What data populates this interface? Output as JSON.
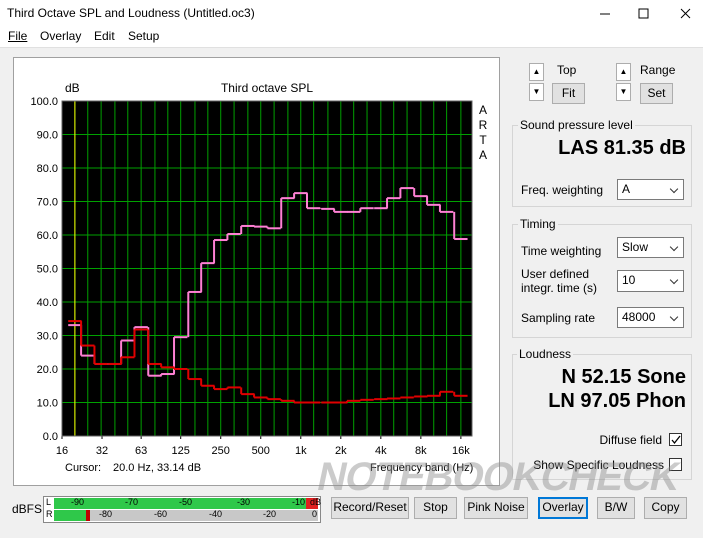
{
  "window": {
    "title": "Third Octave SPL and Loudness (Untitled.oc3)"
  },
  "menu": [
    "File",
    "Overlay",
    "Edit",
    "Setup"
  ],
  "chart_data": {
    "type": "line",
    "step": true,
    "title": "Third octave SPL",
    "y_unit": "dB",
    "side_label": "ARTA",
    "xlabel": "Frequency band (Hz)",
    "xscale": "log",
    "x": [
      20,
      25,
      31.5,
      40,
      50,
      63,
      80,
      100,
      125,
      160,
      200,
      250,
      315,
      400,
      500,
      630,
      800,
      1000,
      1250,
      1600,
      2000,
      2500,
      3150,
      4000,
      5000,
      6300,
      8000,
      10000,
      12500,
      16000
    ],
    "series": [
      {
        "color": "#ff80d4",
        "values": [
          33.1,
          24,
          21.5,
          21.5,
          28.5,
          32.5,
          18,
          18.5,
          29.5,
          43,
          51.6,
          58.5,
          60.3,
          62.7,
          62.5,
          62,
          71,
          72.5,
          68,
          67.8,
          66.9,
          66.9,
          68,
          68,
          71,
          74,
          71.6,
          69,
          66.9,
          58.8
        ]
      },
      {
        "color": "#e00000",
        "values": [
          34.3,
          27,
          21.5,
          21.5,
          23.5,
          31.8,
          21.5,
          20.5,
          20,
          17,
          15,
          14,
          14.5,
          12.5,
          11.5,
          11,
          10.5,
          10,
          10,
          10,
          10,
          10.5,
          10.8,
          11,
          11.2,
          11.5,
          11.8,
          12,
          13.2,
          12
        ]
      }
    ],
    "xlim": [
      16,
      19400
    ],
    "xticks": [
      16,
      32,
      63,
      125,
      250,
      500,
      {
        "value": 1000,
        "label": "1k"
      },
      {
        "value": 2000,
        "label": "2k"
      },
      {
        "value": 4000,
        "label": "4k"
      },
      {
        "value": 8000,
        "label": "8k"
      },
      {
        "value": 16000,
        "label": "16k"
      }
    ],
    "ylim": [
      0,
      100
    ],
    "yticks": [
      {
        "value": 0,
        "label": "0.0"
      },
      {
        "value": 10,
        "label": "10.0"
      },
      {
        "value": 20,
        "label": "20.0"
      },
      {
        "value": 30,
        "label": "30.0"
      },
      {
        "value": 40,
        "label": "40.0"
      },
      {
        "value": 50,
        "label": "50.0"
      },
      {
        "value": 60,
        "label": "60.0"
      },
      {
        "value": 70,
        "label": "70.0"
      },
      {
        "value": 80,
        "label": "80.0"
      },
      {
        "value": 90,
        "label": "90.0"
      },
      {
        "value": 100,
        "label": "100.0"
      }
    ],
    "grid": true,
    "background": "#000000",
    "grid_color": "#00a000",
    "cursor": {
      "label": "Cursor:",
      "x": 20,
      "color": "#ffff00",
      "readout": "20.0 Hz, 33.14 dB"
    }
  },
  "controls": {
    "top": "Top",
    "fit": "Fit",
    "range": "Range",
    "set": "Set"
  },
  "spl": {
    "title": "Sound pressure level",
    "reading": "LAS 81.35 dB",
    "weighting_label": "Freq. weighting",
    "weighting": "A"
  },
  "timing": {
    "title": "Timing",
    "time_weighting_label": "Time weighting",
    "time_weighting": "Slow",
    "integr_label": [
      "User defined",
      "integr. time (s)"
    ],
    "integr_time": 10,
    "sampling_rate_label": "Sampling rate",
    "sampling_rate": 48000
  },
  "loudness": {
    "title": "Loudness",
    "n": "N 52.15 Sone",
    "ln": "LN 97.05 Phon",
    "diffuse_field": "Diffuse field",
    "show_specific": "Show Specific Loudness"
  },
  "meter": {
    "label": "dBFS",
    "left": {
      "channel": "L",
      "scale": [
        "-90",
        "-70",
        "-50",
        "-30",
        "-10"
      ],
      "unit": "dB"
    },
    "right": {
      "channel": "R",
      "scale": [
        "-80",
        "-60",
        "-40",
        "-20",
        "0"
      ]
    }
  },
  "buttons": [
    "Record/Reset",
    "Stop",
    "Pink Noise",
    "Overlay",
    "B/W",
    "Copy"
  ],
  "watermark": "NOTEBOOKCHECK"
}
